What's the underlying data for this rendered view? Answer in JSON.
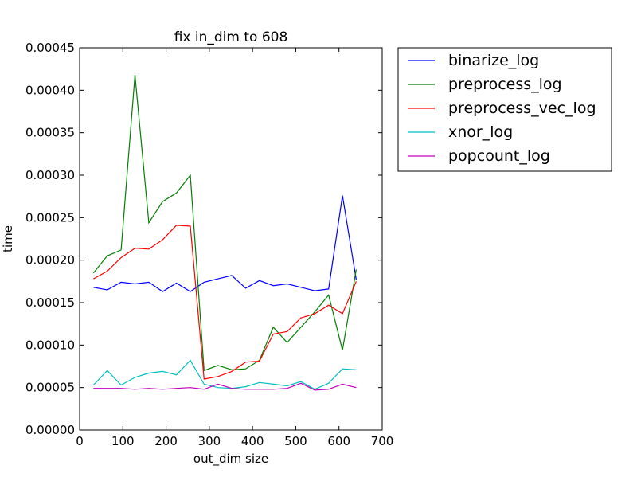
{
  "chart_data": {
    "type": "line",
    "title": "fix in_dim to 608",
    "xlabel": "out_dim size",
    "ylabel": "time",
    "xlim": [
      0,
      700
    ],
    "ylim": [
      0,
      0.00045
    ],
    "xticks": [
      0,
      100,
      200,
      300,
      400,
      500,
      600,
      700
    ],
    "yticks": [
      0,
      5e-05,
      0.0001,
      0.00015,
      0.0002,
      0.00025,
      0.0003,
      0.00035,
      0.0004,
      0.00045
    ],
    "xtick_labels": [
      "0",
      "100",
      "200",
      "300",
      "400",
      "500",
      "600",
      "700"
    ],
    "ytick_labels": [
      "0.00000",
      "0.00005",
      "0.00010",
      "0.00015",
      "0.00020",
      "0.00025",
      "0.00030",
      "0.00035",
      "0.00040",
      "0.00045"
    ],
    "grid": false,
    "legend_position": "outside-right-top",
    "x": [
      32,
      64,
      96,
      128,
      160,
      192,
      224,
      256,
      288,
      320,
      352,
      384,
      416,
      448,
      480,
      512,
      544,
      576,
      608,
      640
    ],
    "series": [
      {
        "name": "binarize_log",
        "color": "#0000ff",
        "values": [
          0.000168,
          0.000165,
          0.000174,
          0.000172,
          0.000174,
          0.000163,
          0.000173,
          0.000163,
          0.000174,
          0.000178,
          0.000182,
          0.000167,
          0.000176,
          0.00017,
          0.000172,
          0.000168,
          0.000164,
          0.000166,
          0.000276,
          0.000177
        ]
      },
      {
        "name": "preprocess_log",
        "color": "#008000",
        "values": [
          0.000185,
          0.000205,
          0.000212,
          0.000418,
          0.000244,
          0.000269,
          0.000279,
          0.0003,
          7e-05,
          7.6e-05,
          7.1e-05,
          7.2e-05,
          8.2e-05,
          0.000121,
          0.000103,
          0.000121,
          0.000139,
          0.000159,
          9.4e-05,
          0.000189
        ]
      },
      {
        "name": "preprocess_vec_log",
        "color": "#ff0000",
        "values": [
          0.000178,
          0.000187,
          0.000203,
          0.000214,
          0.000213,
          0.000224,
          0.000241,
          0.00024,
          6e-05,
          6.3e-05,
          6.9e-05,
          8e-05,
          8.1e-05,
          0.000113,
          0.000116,
          0.000132,
          0.000137,
          0.000147,
          0.000137,
          0.000175
        ]
      },
      {
        "name": "xnor_log",
        "color": "#00bfbf",
        "values": [
          5.3e-05,
          7e-05,
          5.3e-05,
          6.2e-05,
          6.7e-05,
          6.9e-05,
          6.5e-05,
          8.2e-05,
          5.4e-05,
          5e-05,
          4.9e-05,
          5.1e-05,
          5.6e-05,
          5.4e-05,
          5.2e-05,
          5.7e-05,
          4.8e-05,
          5.5e-05,
          7.2e-05,
          7.1e-05
        ]
      },
      {
        "name": "popcount_log",
        "color": "#bf00bf",
        "values": [
          4.9e-05,
          4.9e-05,
          4.9e-05,
          4.8e-05,
          4.9e-05,
          4.8e-05,
          4.9e-05,
          5e-05,
          4.8e-05,
          5.4e-05,
          4.9e-05,
          4.8e-05,
          4.8e-05,
          4.8e-05,
          4.9e-05,
          5.5e-05,
          4.7e-05,
          4.8e-05,
          5.4e-05,
          5e-05
        ]
      }
    ]
  }
}
